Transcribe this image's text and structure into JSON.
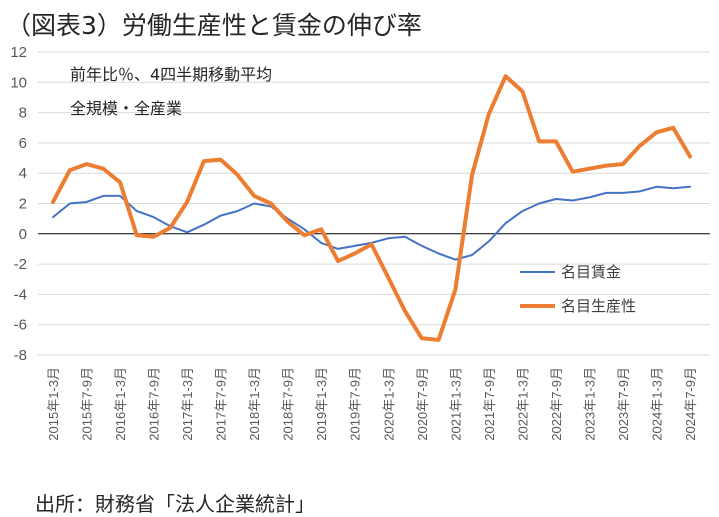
{
  "title": "（図表3）労働生産性と賃金の伸び率",
  "source": "出所：財務省「法人企業統計」",
  "chart_data": {
    "type": "line",
    "notes": [
      "前年比％、4四半期移動平均",
      "全規模・全産業"
    ],
    "ylim": [
      -8,
      12
    ],
    "yticks": [
      -8,
      -6,
      -4,
      -2,
      0,
      2,
      4,
      6,
      8,
      10,
      12
    ],
    "grid": true,
    "legend_position": "right-middle",
    "x_tick_labels": [
      "2015年1-3月",
      "2015年7-9月",
      "2016年1-3月",
      "2016年7-9月",
      "2017年1-3月",
      "2017年7-9月",
      "2018年1-3月",
      "2018年7-9月",
      "2019年1-3月",
      "2019年7-9月",
      "2020年1-3月",
      "2020年7-9月",
      "2021年1-3月",
      "2021年7-9月",
      "2022年1-3月",
      "2022年7-9月",
      "2023年1-3月",
      "2023年7-9月",
      "2024年1-3月",
      "2024年7-9月"
    ],
    "series": [
      {
        "name": "名目賃金",
        "color": "#4472C4",
        "width": 2,
        "values": [
          1.1,
          2.0,
          2.1,
          2.5,
          2.5,
          1.5,
          1.1,
          0.5,
          0.1,
          0.6,
          1.2,
          1.5,
          2.0,
          1.8,
          1.0,
          0.3,
          -0.6,
          -1.0,
          -0.8,
          -0.6,
          -0.3,
          -0.2,
          -0.8,
          -1.3,
          -1.7,
          -1.4,
          -0.5,
          0.7,
          1.5,
          2.0,
          2.3,
          2.2,
          2.4,
          2.7,
          2.7,
          2.8,
          3.1,
          3.0,
          3.1
        ]
      },
      {
        "name": "名目生産性",
        "color": "#ED7D31",
        "width": 4,
        "values": [
          2.1,
          4.2,
          4.6,
          4.3,
          3.4,
          -0.1,
          -0.2,
          0.4,
          2.1,
          4.8,
          4.9,
          3.9,
          2.5,
          2.0,
          0.8,
          -0.1,
          0.3,
          -1.8,
          -1.3,
          -0.7,
          -2.9,
          -5.1,
          -6.9,
          -7.0,
          -3.7,
          3.9,
          7.9,
          10.4,
          9.4,
          6.1,
          6.1,
          4.1,
          4.3,
          4.5,
          4.6,
          5.8,
          6.7,
          7.0,
          5.1
        ]
      }
    ]
  }
}
